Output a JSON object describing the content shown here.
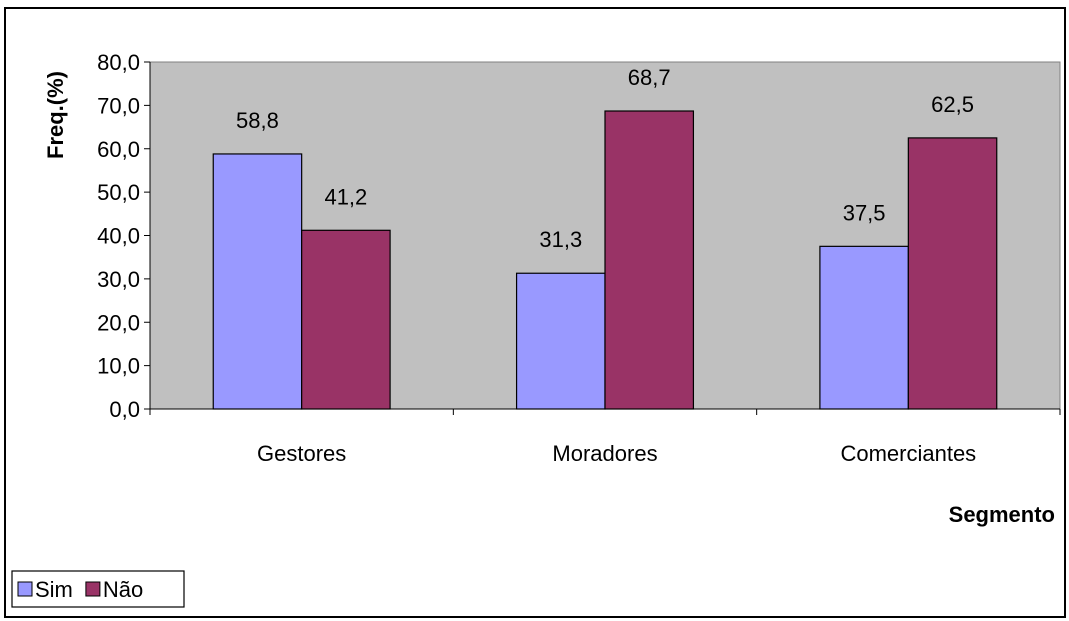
{
  "chart_data": {
    "type": "bar",
    "categories": [
      "Gestores",
      "Moradores",
      "Comerciantes"
    ],
    "series": [
      {
        "name": "Sim",
        "values": [
          58.8,
          31.3,
          37.5
        ],
        "value_labels": [
          "58,8",
          "31,3",
          "37,5"
        ],
        "color": "#9999ff"
      },
      {
        "name": "Não",
        "values": [
          41.2,
          68.7,
          62.5
        ],
        "value_labels": [
          "41,2",
          "68,7",
          "62,5"
        ],
        "color": "#993366"
      }
    ],
    "xlabel": "Segmento",
    "ylabel": "Freq.(%)",
    "ylim": [
      0,
      80
    ],
    "yticks": [
      0,
      10,
      20,
      30,
      40,
      50,
      60,
      70,
      80
    ],
    "ytick_labels": [
      "0,0",
      "10,0",
      "20,0",
      "30,0",
      "40,0",
      "50,0",
      "60,0",
      "70,0",
      "80,0"
    ],
    "plot_background": "#c0c0c0",
    "grid": false,
    "legend_position": "bottom-left"
  }
}
